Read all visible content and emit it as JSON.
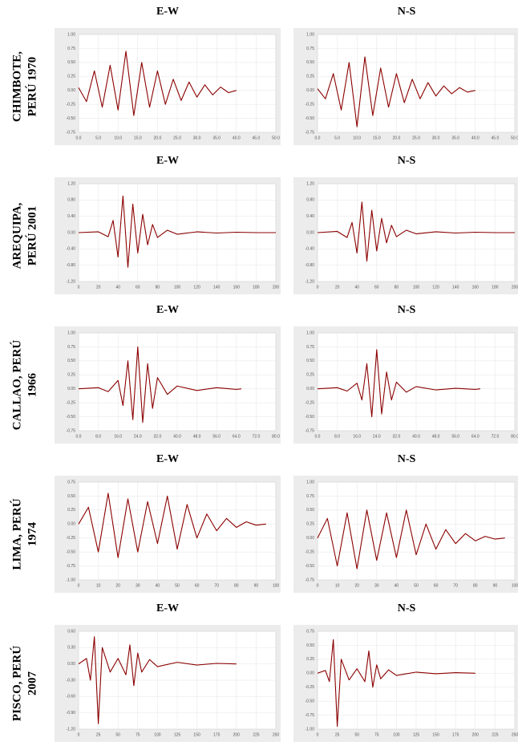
{
  "row_labels": [
    [
      "CHIMBOTE,",
      "PERÚ 1970"
    ],
    [
      "AREQUIPA,",
      "PERÚ 2001"
    ],
    [
      "CALLAO, PERÚ",
      "1966"
    ],
    [
      "LIMA, PERÚ",
      "1974"
    ],
    [
      "PISCO, PERÚ",
      "2007"
    ]
  ],
  "chart_data": [
    {
      "type": "line",
      "title": "E-W",
      "color": "#8b0000",
      "x": [
        0,
        2,
        4,
        6,
        8,
        10,
        12,
        14,
        16,
        18,
        20,
        22,
        24,
        26,
        28,
        30,
        32,
        34,
        36,
        38,
        40
      ],
      "values": [
        0.05,
        -0.2,
        0.35,
        -0.3,
        0.45,
        -0.35,
        0.7,
        -0.45,
        0.5,
        -0.3,
        0.35,
        -0.25,
        0.2,
        -0.18,
        0.15,
        -0.12,
        0.1,
        -0.08,
        0.06,
        -0.04,
        0
      ],
      "xlim": [
        0,
        50
      ],
      "ylim": [
        -0.75,
        1
      ],
      "xticks": [
        {
          "value": 0,
          "label": "0.0"
        },
        {
          "value": 5,
          "label": "5.0"
        },
        {
          "value": 10,
          "label": "10.0"
        },
        {
          "value": 15,
          "label": "15.0"
        },
        {
          "value": 20,
          "label": "20.0"
        },
        {
          "value": 25,
          "label": "25.0"
        },
        {
          "value": 30,
          "label": "30.0"
        },
        {
          "value": 35,
          "label": "35.0"
        },
        {
          "value": 40,
          "label": "40.0"
        },
        {
          "value": 45,
          "label": "45.0"
        },
        {
          "value": 50,
          "label": "50.0"
        }
      ],
      "yticks": [
        {
          "value": 1,
          "label": "1.00"
        },
        {
          "value": 0.75,
          "label": "0.75"
        },
        {
          "value": 0.5,
          "label": "0.50"
        },
        {
          "value": 0.25,
          "label": "0.25"
        },
        {
          "value": 0,
          "label": "0.00"
        },
        {
          "value": -0.25,
          "label": "-0.25"
        },
        {
          "value": -0.5,
          "label": "-0.50"
        },
        {
          "value": -0.75,
          "label": "-0.75"
        }
      ],
      "grid": true
    },
    {
      "type": "line",
      "title": "N-S",
      "color": "#8b0000",
      "x": [
        0,
        2,
        4,
        6,
        8,
        10,
        12,
        14,
        16,
        18,
        20,
        22,
        24,
        26,
        28,
        30,
        32,
        34,
        36,
        38,
        40
      ],
      "values": [
        0.03,
        -0.15,
        0.3,
        -0.35,
        0.5,
        -0.65,
        0.6,
        -0.45,
        0.4,
        -0.3,
        0.3,
        -0.22,
        0.2,
        -0.15,
        0.14,
        -0.1,
        0.08,
        -0.06,
        0.05,
        -0.03,
        0
      ],
      "xlim": [
        0,
        50
      ],
      "ylim": [
        -0.75,
        1
      ],
      "xticks": [
        {
          "value": 0,
          "label": "0.0"
        },
        {
          "value": 5,
          "label": "5.0"
        },
        {
          "value": 10,
          "label": "10.0"
        },
        {
          "value": 15,
          "label": "15.0"
        },
        {
          "value": 20,
          "label": "20.0"
        },
        {
          "value": 25,
          "label": "25.0"
        },
        {
          "value": 30,
          "label": "30.0"
        },
        {
          "value": 35,
          "label": "35.0"
        },
        {
          "value": 40,
          "label": "40.0"
        },
        {
          "value": 45,
          "label": "45.0"
        },
        {
          "value": 50,
          "label": "50.0"
        }
      ],
      "yticks": [
        {
          "value": 1,
          "label": "1.00"
        },
        {
          "value": 0.75,
          "label": "0.75"
        },
        {
          "value": 0.5,
          "label": "0.50"
        },
        {
          "value": 0.25,
          "label": "0.25"
        },
        {
          "value": 0,
          "label": "0.00"
        },
        {
          "value": -0.25,
          "label": "-0.25"
        },
        {
          "value": -0.5,
          "label": "-0.50"
        },
        {
          "value": -0.75,
          "label": "-0.75"
        }
      ],
      "grid": true
    },
    {
      "type": "line",
      "title": "E-W",
      "color": "#8b0000",
      "x": [
        0,
        20,
        30,
        35,
        40,
        45,
        50,
        55,
        60,
        65,
        70,
        75,
        80,
        90,
        100,
        120,
        140,
        160,
        180,
        200
      ],
      "values": [
        0,
        0.02,
        -0.1,
        0.3,
        -0.6,
        0.9,
        -0.85,
        0.7,
        -0.5,
        0.45,
        -0.3,
        0.2,
        -0.12,
        0.06,
        -0.04,
        0.02,
        -0.01,
        0.01,
        0,
        0
      ],
      "xlim": [
        0,
        200
      ],
      "ylim": [
        -1.2,
        1.2
      ],
      "xticks": [
        0,
        20,
        40,
        60,
        80,
        100,
        120,
        140,
        160,
        180,
        200
      ],
      "yticks": [
        {
          "value": 1.2,
          "label": "1.20"
        },
        {
          "value": 0.8,
          "label": "0.80"
        },
        {
          "value": 0.4,
          "label": "0.40"
        },
        {
          "value": 0,
          "label": "0.00"
        },
        {
          "value": -0.4,
          "label": "-0.40"
        },
        {
          "value": -0.8,
          "label": "-0.80"
        },
        {
          "value": -1.2,
          "label": "-1.20"
        }
      ],
      "grid": true
    },
    {
      "type": "line",
      "title": "N-S",
      "color": "#8b0000",
      "x": [
        0,
        20,
        30,
        35,
        40,
        45,
        50,
        55,
        60,
        65,
        70,
        75,
        80,
        90,
        100,
        120,
        140,
        160,
        180,
        200
      ],
      "values": [
        0,
        0.03,
        -0.12,
        0.25,
        -0.5,
        0.75,
        -0.7,
        0.55,
        -0.45,
        0.35,
        -0.25,
        0.18,
        -0.1,
        0.06,
        -0.03,
        0.02,
        -0.01,
        0.01,
        0,
        0
      ],
      "xlim": [
        0,
        200
      ],
      "ylim": [
        -1.2,
        1.2
      ],
      "xticks": [
        0,
        20,
        40,
        60,
        80,
        100,
        120,
        140,
        160,
        180,
        200
      ],
      "yticks": [
        {
          "value": 1.2,
          "label": "1.20"
        },
        {
          "value": 0.8,
          "label": "0.80"
        },
        {
          "value": 0.4,
          "label": "0.40"
        },
        {
          "value": 0,
          "label": "0.00"
        },
        {
          "value": -0.4,
          "label": "-0.40"
        },
        {
          "value": -0.8,
          "label": "-0.80"
        },
        {
          "value": -1.2,
          "label": "-1.20"
        }
      ],
      "grid": true
    },
    {
      "type": "line",
      "title": "E-W",
      "color": "#8b0000",
      "x": [
        0,
        8,
        12,
        16,
        18,
        20,
        22,
        24,
        26,
        28,
        30,
        32,
        36,
        40,
        48,
        56,
        64,
        66
      ],
      "values": [
        0,
        0.02,
        -0.05,
        0.15,
        -0.3,
        0.5,
        -0.55,
        0.75,
        -0.6,
        0.45,
        -0.35,
        0.2,
        -0.1,
        0.05,
        -0.03,
        0.02,
        -0.01,
        0
      ],
      "xlim": [
        0,
        80
      ],
      "ylim": [
        -0.75,
        1
      ],
      "xticks": [
        {
          "value": 0,
          "label": "0.0"
        },
        {
          "value": 8,
          "label": "8.0"
        },
        {
          "value": 16,
          "label": "16.0"
        },
        {
          "value": 24,
          "label": "24.0"
        },
        {
          "value": 32,
          "label": "32.0"
        },
        {
          "value": 40,
          "label": "40.0"
        },
        {
          "value": 48,
          "label": "48.0"
        },
        {
          "value": 56,
          "label": "56.0"
        },
        {
          "value": 64,
          "label": "64.0"
        },
        {
          "value": 72,
          "label": "72.0"
        },
        {
          "value": 80,
          "label": "80.0"
        }
      ],
      "yticks": [
        {
          "value": 1,
          "label": "1.00"
        },
        {
          "value": 0.75,
          "label": "0.75"
        },
        {
          "value": 0.5,
          "label": "0.50"
        },
        {
          "value": 0.25,
          "label": "0.25"
        },
        {
          "value": 0,
          "label": "0.00"
        },
        {
          "value": -0.25,
          "label": "-0.25"
        },
        {
          "value": -0.5,
          "label": "-0.50"
        },
        {
          "value": -0.75,
          "label": "-0.75"
        }
      ],
      "grid": true
    },
    {
      "type": "line",
      "title": "N-S",
      "color": "#8b0000",
      "x": [
        0,
        8,
        12,
        16,
        18,
        20,
        22,
        24,
        26,
        28,
        30,
        32,
        36,
        40,
        48,
        56,
        64,
        66
      ],
      "values": [
        0,
        0.02,
        -0.04,
        0.1,
        -0.2,
        0.45,
        -0.5,
        0.7,
        -0.45,
        0.3,
        -0.2,
        0.12,
        -0.06,
        0.04,
        -0.02,
        0.01,
        -0.01,
        0
      ],
      "xlim": [
        0,
        80
      ],
      "ylim": [
        -0.75,
        1
      ],
      "xticks": [
        {
          "value": 0,
          "label": "0.0"
        },
        {
          "value": 8,
          "label": "8.0"
        },
        {
          "value": 16,
          "label": "16.0"
        },
        {
          "value": 24,
          "label": "24.0"
        },
        {
          "value": 32,
          "label": "32.0"
        },
        {
          "value": 40,
          "label": "40.0"
        },
        {
          "value": 48,
          "label": "48.0"
        },
        {
          "value": 56,
          "label": "56.0"
        },
        {
          "value": 64,
          "label": "64.0"
        },
        {
          "value": 72,
          "label": "72.0"
        },
        {
          "value": 80,
          "label": "80.0"
        }
      ],
      "yticks": [
        {
          "value": 1,
          "label": "1.00"
        },
        {
          "value": 0.75,
          "label": "0.75"
        },
        {
          "value": 0.5,
          "label": "0.50"
        },
        {
          "value": 0.25,
          "label": "0.25"
        },
        {
          "value": 0,
          "label": "0.00"
        },
        {
          "value": -0.25,
          "label": "-0.25"
        },
        {
          "value": -0.5,
          "label": "-0.50"
        },
        {
          "value": -0.75,
          "label": "-0.75"
        }
      ],
      "grid": true
    },
    {
      "type": "line",
      "title": "E-W",
      "color": "#8b0000",
      "x": [
        0,
        5,
        10,
        15,
        20,
        25,
        30,
        35,
        40,
        45,
        50,
        55,
        60,
        65,
        70,
        75,
        80,
        85,
        90,
        95
      ],
      "values": [
        0,
        0.3,
        -0.5,
        0.55,
        -0.6,
        0.45,
        -0.5,
        0.4,
        -0.35,
        0.5,
        -0.45,
        0.35,
        -0.25,
        0.18,
        -0.12,
        0.1,
        -0.06,
        0.04,
        -0.02,
        0
      ],
      "xlim": [
        0,
        100
      ],
      "ylim": [
        -1,
        0.75
      ],
      "xticks": [
        0,
        10,
        20,
        30,
        40,
        50,
        60,
        70,
        80,
        90,
        100
      ],
      "yticks": [
        {
          "value": 0.75,
          "label": "0.75"
        },
        {
          "value": 0.5,
          "label": "0.50"
        },
        {
          "value": 0.25,
          "label": "0.25"
        },
        {
          "value": 0,
          "label": "0.00"
        },
        {
          "value": -0.25,
          "label": "-0.25"
        },
        {
          "value": -0.5,
          "label": "-0.50"
        },
        {
          "value": -0.75,
          "label": "-0.75"
        },
        {
          "value": -1,
          "label": "-1.00"
        }
      ],
      "grid": true
    },
    {
      "type": "line",
      "title": "N-S",
      "color": "#8b0000",
      "x": [
        0,
        5,
        10,
        15,
        20,
        25,
        30,
        35,
        40,
        45,
        50,
        55,
        60,
        65,
        70,
        75,
        80,
        85,
        90,
        95
      ],
      "values": [
        0,
        0.35,
        -0.5,
        0.45,
        -0.55,
        0.5,
        -0.4,
        0.45,
        -0.35,
        0.5,
        -0.3,
        0.25,
        -0.2,
        0.15,
        -0.1,
        0.08,
        -0.05,
        0.03,
        -0.02,
        0
      ],
      "xlim": [
        0,
        100
      ],
      "ylim": [
        -0.75,
        1
      ],
      "xticks": [
        0,
        10,
        20,
        30,
        40,
        50,
        60,
        70,
        80,
        90,
        100
      ],
      "yticks": [
        {
          "value": 1,
          "label": "1.00"
        },
        {
          "value": 0.75,
          "label": "0.75"
        },
        {
          "value": 0.5,
          "label": "0.50"
        },
        {
          "value": 0.25,
          "label": "0.25"
        },
        {
          "value": 0,
          "label": "0.00"
        },
        {
          "value": -0.25,
          "label": "-0.25"
        },
        {
          "value": -0.5,
          "label": "-0.50"
        },
        {
          "value": -0.75,
          "label": "-0.75"
        }
      ],
      "grid": true
    },
    {
      "type": "line",
      "title": "E-W",
      "color": "#8b0000",
      "x": [
        0,
        10,
        15,
        20,
        25,
        30,
        40,
        50,
        60,
        65,
        70,
        75,
        80,
        90,
        100,
        125,
        150,
        175,
        200
      ],
      "values": [
        0,
        0.1,
        -0.3,
        0.5,
        -1.1,
        0.3,
        -0.15,
        0.1,
        -0.2,
        0.35,
        -0.4,
        0.2,
        -0.15,
        0.08,
        -0.05,
        0.03,
        -0.02,
        0.01,
        0
      ],
      "xlim": [
        0,
        250
      ],
      "ylim": [
        -1.2,
        0.6
      ],
      "xticks": [
        0,
        25,
        50,
        75,
        100,
        125,
        150,
        175,
        200,
        225,
        250
      ],
      "yticks": [
        {
          "value": 0.6,
          "label": "0.60"
        },
        {
          "value": 0.3,
          "label": "0.30"
        },
        {
          "value": 0,
          "label": "0.00"
        },
        {
          "value": -0.3,
          "label": "-0.30"
        },
        {
          "value": -0.6,
          "label": "-0.60"
        },
        {
          "value": -0.9,
          "label": "-0.90"
        },
        {
          "value": -1.2,
          "label": "-1.20"
        }
      ],
      "grid": true
    },
    {
      "type": "line",
      "title": "N-S",
      "color": "#8b0000",
      "x": [
        0,
        10,
        15,
        20,
        25,
        30,
        40,
        50,
        60,
        65,
        70,
        75,
        80,
        90,
        100,
        125,
        150,
        175,
        200
      ],
      "values": [
        0,
        0.05,
        -0.15,
        0.6,
        -0.95,
        0.25,
        -0.12,
        0.08,
        -0.15,
        0.4,
        -0.25,
        0.15,
        -0.1,
        0.06,
        -0.04,
        0.02,
        -0.01,
        0.01,
        0
      ],
      "xlim": [
        0,
        250
      ],
      "ylim": [
        -1,
        0.75
      ],
      "xticks": [
        0,
        25,
        50,
        75,
        100,
        125,
        150,
        175,
        200,
        225,
        250
      ],
      "yticks": [
        {
          "value": 0.75,
          "label": "0.75"
        },
        {
          "value": 0.5,
          "label": "0.50"
        },
        {
          "value": 0.25,
          "label": "0.25"
        },
        {
          "value": 0,
          "label": "0.00"
        },
        {
          "value": -0.25,
          "label": "-0.25"
        },
        {
          "value": -0.5,
          "label": "-0.50"
        },
        {
          "value": -0.75,
          "label": "-0.75"
        },
        {
          "value": -1,
          "label": "-1.00"
        }
      ],
      "grid": true
    }
  ]
}
